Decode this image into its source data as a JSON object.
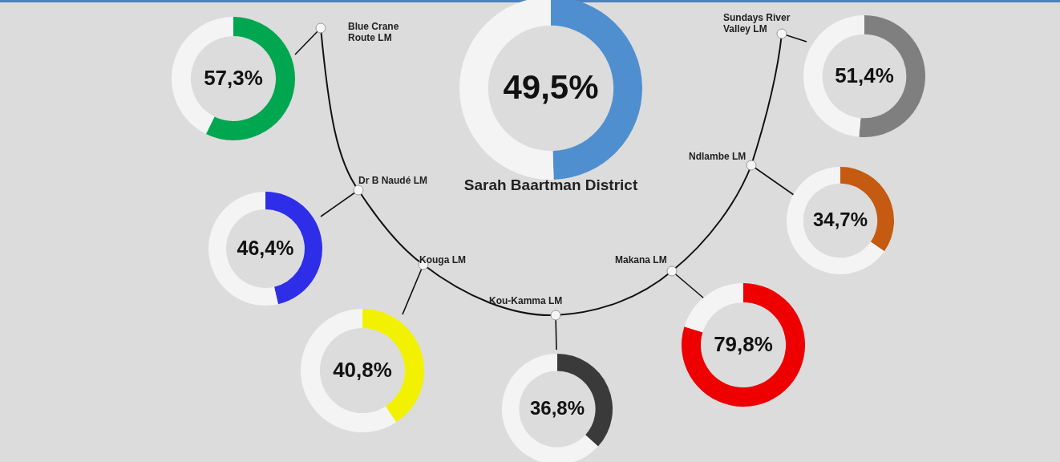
{
  "chart_data": [
    {
      "type": "donut",
      "title": "Sarah Baartman District",
      "categories": [
        null,
        null
      ],
      "values": [
        49.5,
        50.5
      ],
      "colors": [
        "#4f8fd0",
        "#f4f4f4"
      ],
      "value_labels": [
        "49,5%",
        null
      ]
    },
    {
      "type": "donut",
      "title": "Blue Crane Route LM",
      "categories": [
        null,
        null
      ],
      "values": [
        57.3,
        42.7
      ],
      "colors": [
        "#00a650",
        "#f4f4f4"
      ],
      "value_labels": [
        "57,3%",
        null
      ]
    },
    {
      "type": "donut",
      "title": "Dr B Naudé LM",
      "categories": [
        null,
        null
      ],
      "values": [
        46.4,
        53.6
      ],
      "colors": [
        "#2e2ee8",
        "#f4f4f4"
      ],
      "value_labels": [
        "46,4%",
        null
      ]
    },
    {
      "type": "donut",
      "title": "Kouga LM",
      "categories": [
        null,
        null
      ],
      "values": [
        40.8,
        59.2
      ],
      "colors": [
        "#f2f200",
        "#f4f4f4"
      ],
      "value_labels": [
        "40,8%",
        null
      ]
    },
    {
      "type": "donut",
      "title": "Kou-Kamma LM",
      "categories": [
        null,
        null
      ],
      "values": [
        36.8,
        63.2
      ],
      "colors": [
        "#3a3a3a",
        "#f4f4f4"
      ],
      "value_labels": [
        "36,8%",
        null
      ]
    },
    {
      "type": "donut",
      "title": "Makana LM",
      "categories": [
        null,
        null
      ],
      "values": [
        79.8,
        20.2
      ],
      "colors": [
        "#ee0000",
        "#f4f4f4"
      ],
      "value_labels": [
        "79,8%",
        null
      ]
    },
    {
      "type": "donut",
      "title": "Ndlambe LM",
      "categories": [
        null,
        null
      ],
      "values": [
        34.7,
        65.3
      ],
      "colors": [
        "#c55a11",
        "#f4f4f4"
      ],
      "value_labels": [
        "34,7%",
        null
      ]
    },
    {
      "type": "donut",
      "title": "Sundays River Valley LM",
      "categories": [
        null,
        null
      ],
      "values": [
        51.4,
        48.6
      ],
      "colors": [
        "#7f7f7f",
        "#f4f4f4"
      ],
      "value_labels": [
        "51,4%",
        null
      ]
    }
  ]
}
